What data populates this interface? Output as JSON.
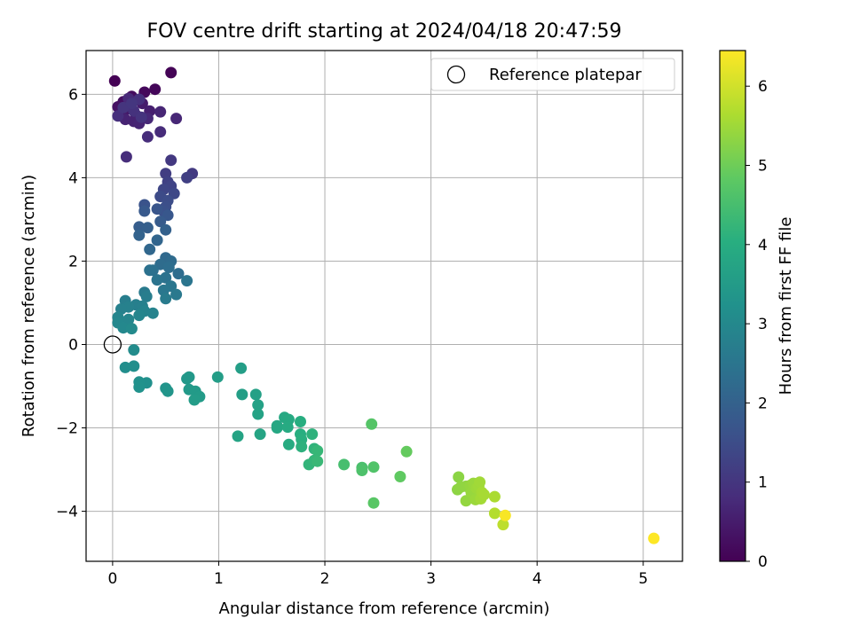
{
  "chart_data": {
    "type": "scatter",
    "title": "FOV centre drift starting at 2024/04/18 20:47:59",
    "xlabel": "Angular distance from reference (arcmin)",
    "ylabel": "Rotation from reference (arcmin)",
    "xlim": [
      -0.25,
      5.37
    ],
    "ylim": [
      -5.2,
      7.05
    ],
    "xticks": [
      0,
      1,
      2,
      3,
      4,
      5
    ],
    "yticks": [
      -4,
      -2,
      0,
      2,
      4,
      6
    ],
    "xtick_labels": [
      "0",
      "1",
      "2",
      "3",
      "4",
      "5"
    ],
    "ytick_labels": [
      "−4",
      "−2",
      "0",
      "2",
      "4",
      "6"
    ],
    "grid": true,
    "legend": {
      "label": "Reference platepar",
      "placement": "top-right",
      "marker": "open-circle"
    },
    "reference_point": {
      "x": 0,
      "y": 0
    },
    "colorbar": {
      "label": "Hours from first FF file",
      "colormap": "viridis",
      "range": [
        0,
        6.45
      ],
      "ticks": [
        0,
        1,
        2,
        3,
        4,
        5,
        6
      ],
      "tick_labels": [
        "0",
        "1",
        "2",
        "3",
        "4",
        "5",
        "6"
      ]
    },
    "series": [
      {
        "points": [
          {
            "x": 0.02,
            "y": 6.32,
            "c": 0.0
          },
          {
            "x": 0.55,
            "y": 6.52,
            "c": 0.05
          },
          {
            "x": 0.4,
            "y": 6.12,
            "c": 0.1
          },
          {
            "x": 0.3,
            "y": 6.05,
            "c": 0.15
          },
          {
            "x": 0.18,
            "y": 5.95,
            "c": 0.2
          },
          {
            "x": 0.1,
            "y": 5.82,
            "c": 0.25
          },
          {
            "x": 0.05,
            "y": 5.7,
            "c": 0.3
          },
          {
            "x": 0.08,
            "y": 5.55,
            "c": 0.35
          },
          {
            "x": 0.15,
            "y": 5.65,
            "c": 0.4
          },
          {
            "x": 0.22,
            "y": 5.5,
            "c": 0.45
          },
          {
            "x": 0.28,
            "y": 5.78,
            "c": 0.5
          },
          {
            "x": 0.35,
            "y": 5.6,
            "c": 0.55
          },
          {
            "x": 0.2,
            "y": 5.35,
            "c": 0.6
          },
          {
            "x": 0.12,
            "y": 5.4,
            "c": 0.62
          },
          {
            "x": 0.25,
            "y": 5.3,
            "c": 0.65
          },
          {
            "x": 0.45,
            "y": 5.58,
            "c": 0.68
          },
          {
            "x": 0.6,
            "y": 5.42,
            "c": 0.7
          },
          {
            "x": 0.33,
            "y": 5.42,
            "c": 0.72
          },
          {
            "x": 0.15,
            "y": 5.9,
            "c": 0.75
          },
          {
            "x": 0.45,
            "y": 5.1,
            "c": 0.78
          },
          {
            "x": 0.33,
            "y": 4.98,
            "c": 0.8
          },
          {
            "x": 0.13,
            "y": 4.5,
            "c": 0.82
          },
          {
            "x": 0.05,
            "y": 5.48,
            "c": 0.85
          },
          {
            "x": 0.17,
            "y": 5.72,
            "c": 0.88
          },
          {
            "x": 0.25,
            "y": 5.88,
            "c": 0.9
          },
          {
            "x": 0.2,
            "y": 5.6,
            "c": 0.92
          },
          {
            "x": 0.27,
            "y": 5.45,
            "c": 0.95
          },
          {
            "x": 0.1,
            "y": 5.68,
            "c": 0.97
          },
          {
            "x": 0.18,
            "y": 5.78,
            "c": 1.0
          },
          {
            "x": 0.55,
            "y": 4.42,
            "c": 1.05
          },
          {
            "x": 0.75,
            "y": 4.1,
            "c": 1.1
          },
          {
            "x": 0.5,
            "y": 4.1,
            "c": 1.15
          },
          {
            "x": 0.7,
            "y": 4.0,
            "c": 1.2
          },
          {
            "x": 0.52,
            "y": 3.9,
            "c": 1.25
          },
          {
            "x": 0.55,
            "y": 3.8,
            "c": 1.3
          },
          {
            "x": 0.48,
            "y": 3.72,
            "c": 1.35
          },
          {
            "x": 0.58,
            "y": 3.62,
            "c": 1.4
          },
          {
            "x": 0.45,
            "y": 3.55,
            "c": 1.45
          },
          {
            "x": 0.52,
            "y": 3.45,
            "c": 1.5
          },
          {
            "x": 0.5,
            "y": 3.3,
            "c": 1.55
          },
          {
            "x": 0.48,
            "y": 3.2,
            "c": 1.6
          },
          {
            "x": 0.3,
            "y": 3.35,
            "c": 1.65
          },
          {
            "x": 0.42,
            "y": 3.25,
            "c": 1.7
          },
          {
            "x": 0.52,
            "y": 3.1,
            "c": 1.75
          },
          {
            "x": 0.3,
            "y": 3.2,
            "c": 1.8
          },
          {
            "x": 0.45,
            "y": 2.95,
            "c": 1.85
          },
          {
            "x": 0.25,
            "y": 2.82,
            "c": 1.9
          },
          {
            "x": 0.33,
            "y": 2.8,
            "c": 1.95
          },
          {
            "x": 0.5,
            "y": 2.75,
            "c": 2.0
          },
          {
            "x": 0.25,
            "y": 2.62,
            "c": 2.05
          },
          {
            "x": 0.42,
            "y": 2.5,
            "c": 2.1
          },
          {
            "x": 0.35,
            "y": 2.28,
            "c": 2.15
          },
          {
            "x": 0.5,
            "y": 2.08,
            "c": 2.2
          },
          {
            "x": 0.55,
            "y": 2.0,
            "c": 2.25
          },
          {
            "x": 0.45,
            "y": 1.92,
            "c": 2.28
          },
          {
            "x": 0.62,
            "y": 1.7,
            "c": 2.3
          },
          {
            "x": 0.53,
            "y": 1.85,
            "c": 2.33
          },
          {
            "x": 0.38,
            "y": 1.78,
            "c": 2.36
          },
          {
            "x": 0.35,
            "y": 1.78,
            "c": 2.4
          },
          {
            "x": 0.5,
            "y": 1.6,
            "c": 2.43
          },
          {
            "x": 0.42,
            "y": 1.55,
            "c": 2.46
          },
          {
            "x": 0.7,
            "y": 1.53,
            "c": 2.5
          },
          {
            "x": 0.55,
            "y": 1.4,
            "c": 2.53
          },
          {
            "x": 0.48,
            "y": 1.3,
            "c": 2.56
          },
          {
            "x": 0.6,
            "y": 1.2,
            "c": 2.6
          },
          {
            "x": 0.3,
            "y": 1.25,
            "c": 2.63
          },
          {
            "x": 0.5,
            "y": 1.1,
            "c": 2.66
          },
          {
            "x": 0.32,
            "y": 1.15,
            "c": 2.7
          },
          {
            "x": 0.12,
            "y": 1.05,
            "c": 2.72
          },
          {
            "x": 0.22,
            "y": 0.95,
            "c": 2.75
          },
          {
            "x": 0.28,
            "y": 0.92,
            "c": 2.78
          },
          {
            "x": 0.15,
            "y": 0.9,
            "c": 2.8
          },
          {
            "x": 0.08,
            "y": 0.85,
            "c": 2.82
          },
          {
            "x": 0.3,
            "y": 0.8,
            "c": 2.85
          },
          {
            "x": 0.38,
            "y": 0.75,
            "c": 2.87
          },
          {
            "x": 0.25,
            "y": 0.7,
            "c": 2.9
          },
          {
            "x": 0.05,
            "y": 0.65,
            "c": 2.92
          },
          {
            "x": 0.15,
            "y": 0.6,
            "c": 2.95
          },
          {
            "x": 0.05,
            "y": 0.52,
            "c": 2.97
          },
          {
            "x": 0.1,
            "y": 0.4,
            "c": 3.0
          },
          {
            "x": 0.18,
            "y": 0.38,
            "c": 3.03
          },
          {
            "x": 0.2,
            "y": -0.13,
            "c": 3.1
          },
          {
            "x": 0.12,
            "y": -0.55,
            "c": 3.15
          },
          {
            "x": 0.2,
            "y": -0.52,
            "c": 3.18
          },
          {
            "x": 0.32,
            "y": -0.92,
            "c": 3.2
          },
          {
            "x": 0.25,
            "y": -0.9,
            "c": 3.22
          },
          {
            "x": 0.25,
            "y": -1.02,
            "c": 3.25
          },
          {
            "x": 0.5,
            "y": -1.05,
            "c": 3.3
          },
          {
            "x": 0.52,
            "y": -1.12,
            "c": 3.33
          },
          {
            "x": 0.7,
            "y": -0.82,
            "c": 3.4
          },
          {
            "x": 0.72,
            "y": -0.78,
            "c": 3.42
          },
          {
            "x": 0.72,
            "y": -1.08,
            "c": 3.45
          },
          {
            "x": 0.78,
            "y": -1.12,
            "c": 3.48
          },
          {
            "x": 0.82,
            "y": -1.25,
            "c": 3.5
          },
          {
            "x": 0.77,
            "y": -1.33,
            "c": 3.52
          },
          {
            "x": 0.99,
            "y": -0.78,
            "c": 3.55
          },
          {
            "x": 1.21,
            "y": -0.57,
            "c": 3.58
          },
          {
            "x": 1.22,
            "y": -1.2,
            "c": 3.6
          },
          {
            "x": 1.35,
            "y": -1.2,
            "c": 3.63
          },
          {
            "x": 1.37,
            "y": -1.45,
            "c": 3.66
          },
          {
            "x": 1.37,
            "y": -1.67,
            "c": 3.7
          },
          {
            "x": 1.18,
            "y": -2.2,
            "c": 3.73
          },
          {
            "x": 1.39,
            "y": -2.15,
            "c": 3.76
          },
          {
            "x": 1.55,
            "y": -1.95,
            "c": 3.8
          },
          {
            "x": 1.55,
            "y": -2.0,
            "c": 3.83
          },
          {
            "x": 1.62,
            "y": -1.75,
            "c": 3.86
          },
          {
            "x": 1.66,
            "y": -1.8,
            "c": 3.9
          },
          {
            "x": 1.65,
            "y": -1.98,
            "c": 3.93
          },
          {
            "x": 1.66,
            "y": -2.4,
            "c": 3.96
          },
          {
            "x": 1.77,
            "y": -1.85,
            "c": 4.0
          },
          {
            "x": 1.77,
            "y": -2.15,
            "c": 4.03
          },
          {
            "x": 1.78,
            "y": -2.28,
            "c": 4.06
          },
          {
            "x": 1.78,
            "y": -2.45,
            "c": 4.1
          },
          {
            "x": 1.88,
            "y": -2.15,
            "c": 4.13
          },
          {
            "x": 1.9,
            "y": -2.5,
            "c": 4.16
          },
          {
            "x": 1.85,
            "y": -2.88,
            "c": 4.2
          },
          {
            "x": 1.9,
            "y": -2.78,
            "c": 4.23
          },
          {
            "x": 1.93,
            "y": -2.55,
            "c": 4.26
          },
          {
            "x": 1.93,
            "y": -2.8,
            "c": 4.3
          },
          {
            "x": 2.18,
            "y": -2.88,
            "c": 4.5
          },
          {
            "x": 2.35,
            "y": -2.95,
            "c": 4.55
          },
          {
            "x": 2.35,
            "y": -3.02,
            "c": 4.6
          },
          {
            "x": 2.46,
            "y": -2.94,
            "c": 4.65
          },
          {
            "x": 2.44,
            "y": -1.91,
            "c": 4.7
          },
          {
            "x": 2.46,
            "y": -3.8,
            "c": 4.75
          },
          {
            "x": 2.71,
            "y": -3.17,
            "c": 4.85
          },
          {
            "x": 2.77,
            "y": -2.57,
            "c": 4.9
          },
          {
            "x": 3.26,
            "y": -3.18,
            "c": 5.3
          },
          {
            "x": 3.25,
            "y": -3.48,
            "c": 5.32
          },
          {
            "x": 3.28,
            "y": -3.42,
            "c": 5.34
          },
          {
            "x": 3.33,
            "y": -3.4,
            "c": 5.36
          },
          {
            "x": 3.33,
            "y": -3.75,
            "c": 5.38
          },
          {
            "x": 3.37,
            "y": -3.38,
            "c": 5.4
          },
          {
            "x": 3.38,
            "y": -3.55,
            "c": 5.42
          },
          {
            "x": 3.4,
            "y": -3.33,
            "c": 5.44
          },
          {
            "x": 3.42,
            "y": -3.72,
            "c": 5.46
          },
          {
            "x": 3.43,
            "y": -3.45,
            "c": 5.48
          },
          {
            "x": 3.45,
            "y": -3.4,
            "c": 5.5
          },
          {
            "x": 3.46,
            "y": -3.3,
            "c": 5.52
          },
          {
            "x": 3.47,
            "y": -3.7,
            "c": 5.54
          },
          {
            "x": 3.48,
            "y": -3.55,
            "c": 5.56
          },
          {
            "x": 3.5,
            "y": -3.6,
            "c": 5.58
          },
          {
            "x": 3.6,
            "y": -3.65,
            "c": 5.62
          },
          {
            "x": 3.6,
            "y": -4.05,
            "c": 5.7
          },
          {
            "x": 3.68,
            "y": -4.32,
            "c": 5.8
          },
          {
            "x": 3.7,
            "y": -4.1,
            "c": 6.4
          },
          {
            "x": 5.1,
            "y": -4.65,
            "c": 6.45
          }
        ]
      }
    ]
  }
}
